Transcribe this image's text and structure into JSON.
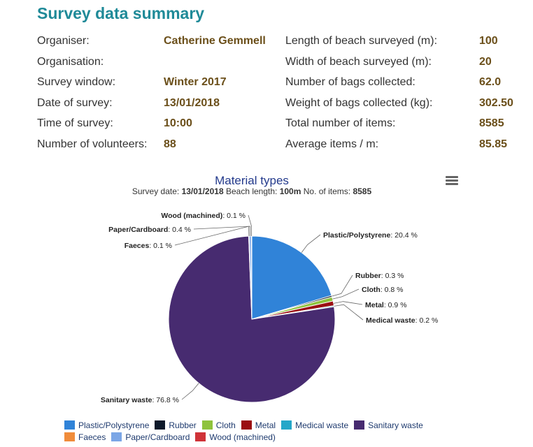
{
  "title": "Survey data summary",
  "left_fields": [
    {
      "label": "Organiser:",
      "value": "Catherine Gemmell"
    },
    {
      "label": "Organisation:",
      "value": ""
    },
    {
      "label": "Survey window:",
      "value": "Winter 2017"
    },
    {
      "label": "Date of survey:",
      "value": "13/01/2018"
    },
    {
      "label": "Time of survey:",
      "value": "10:00"
    },
    {
      "label": "Number of volunteers:",
      "value": "88"
    }
  ],
  "right_fields": [
    {
      "label": "Length of beach surveyed (m):",
      "value": "100"
    },
    {
      "label": "Width of beach surveyed (m):",
      "value": "20"
    },
    {
      "label": "Number of bags collected:",
      "value": "62.0"
    },
    {
      "label": "Weight of bags collected (kg):",
      "value": "302.50"
    },
    {
      "label": "Total number of items:",
      "value": "8585"
    },
    {
      "label": "Average items / m:",
      "value": "85.85"
    }
  ],
  "chart_data": {
    "type": "pie",
    "title": "Material types",
    "subtitle": {
      "date_label": "Survey date:",
      "date": "13/01/2018",
      "length_label": "Beach length:",
      "length": "100m",
      "items_label": "No. of items:",
      "items": "8585"
    },
    "slices": [
      {
        "name": "Plastic/Polystyrene",
        "value": 20.4,
        "color": "#3083d8"
      },
      {
        "name": "Rubber",
        "value": 0.3,
        "color": "#0e1a2b"
      },
      {
        "name": "Cloth",
        "value": 0.8,
        "color": "#8fc33d"
      },
      {
        "name": "Metal",
        "value": 0.9,
        "color": "#9b0f12"
      },
      {
        "name": "Medical waste",
        "value": 0.2,
        "color": "#25a7c9"
      },
      {
        "name": "Sanitary waste",
        "value": 76.8,
        "color": "#472b70"
      },
      {
        "name": "Faeces",
        "value": 0.1,
        "color": "#f08c3b"
      },
      {
        "name": "Paper/Cardboard",
        "value": 0.4,
        "color": "#7ba6e6"
      },
      {
        "name": "Wood (machined)",
        "value": 0.1,
        "color": "#cf3338"
      }
    ],
    "label_suffix": " %"
  }
}
